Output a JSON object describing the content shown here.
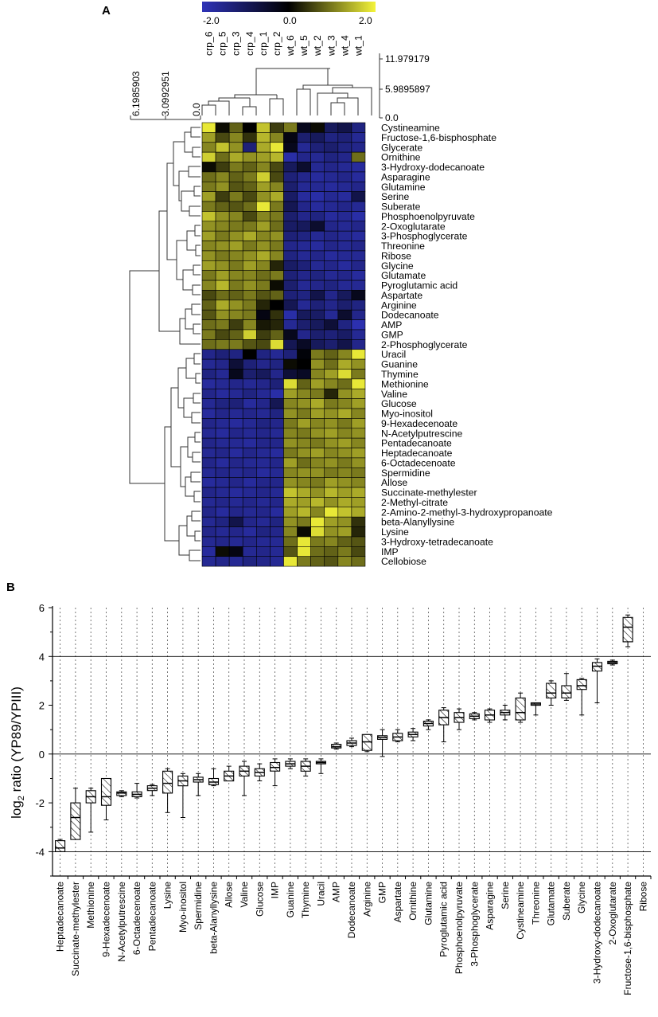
{
  "panels": {
    "a": "A",
    "b": "B"
  },
  "chart_data": [
    {
      "type": "heatmap",
      "panel": "A",
      "colorbar": {
        "ticks": [
          "-2.0",
          "0.0",
          "2.0"
        ],
        "min": -2.0,
        "max": 2.0,
        "low_color": "#2e33b8",
        "mid_color": "#000000",
        "high_color": "#f4f43a"
      },
      "columns": [
        "crp_6",
        "crp_5",
        "crp_3",
        "crp_4",
        "crp_1",
        "crp_2",
        "wt_6",
        "wt_5",
        "wt_2",
        "wt_3",
        "wt_4",
        "wt_1"
      ],
      "rows": [
        "Cystineamine",
        "Fructose-1,6-bisphosphate",
        "Glycerate",
        "Ornithine",
        "3-Hydroxy-dodecanoate",
        "Asparagine",
        "Glutamine",
        "Serine",
        "Suberate",
        "Phosphoenolpyruvate",
        "2-Oxoglutarate",
        "3-Phosphoglycerate",
        "Threonine",
        "Ribose",
        "Glycine",
        "Glutamate",
        "Pyroglutamic acid",
        "Aspartate",
        "Arginine",
        "Dodecanoate",
        "AMP",
        "GMP",
        "2-Phosphoglycerate",
        "Uracil",
        "Guanine",
        "Thymine",
        "Methionine",
        "Valine",
        "Glucose",
        "Myo-inositol",
        "9-Hexadecenoate",
        "N-Acetylputrescine",
        "Pentadecanoate",
        "Heptadecanoate",
        "6-Octadecenoate",
        "Spermidine",
        "Allose",
        "Succinate-methylester",
        "2-Methyl-citrate",
        "2-Amino-2-methyl-3-hydroxypropanoate",
        "beta-Alanyllysine",
        "Lysine",
        "3-Hydroxy-tetradecanoate",
        "IMP",
        "Cellobiose"
      ],
      "values": [
        [
          1.9,
          0.1,
          0.8,
          0.0,
          1.6,
          0.5,
          1.0,
          -0.3,
          0.1,
          -1.0,
          -0.8,
          -1.4
        ],
        [
          1.3,
          0.6,
          1.1,
          0.4,
          1.5,
          1.1,
          -0.2,
          -1.2,
          -1.0,
          -1.4,
          -1.3,
          -1.6
        ],
        [
          1.1,
          1.6,
          1.2,
          -1.3,
          1.4,
          1.9,
          -0.3,
          -1.6,
          -1.3,
          -1.2,
          -1.4,
          -1.5
        ],
        [
          1.7,
          0.9,
          1.4,
          1.2,
          1.3,
          1.5,
          -1.8,
          -1.5,
          -1.6,
          -1.4,
          -1.5,
          0.9
        ],
        [
          0.1,
          0.5,
          1.0,
          0.8,
          1.1,
          0.6,
          -1.0,
          -0.5,
          -1.6,
          -1.5,
          -1.6,
          -1.7
        ],
        [
          0.9,
          1.1,
          0.8,
          1.0,
          1.7,
          0.6,
          -1.3,
          -1.5,
          -1.7,
          -1.6,
          -1.5,
          -1.7
        ],
        [
          1.0,
          1.2,
          0.7,
          0.8,
          1.3,
          1.1,
          -1.2,
          -1.6,
          -1.6,
          -1.7,
          -1.6,
          -1.5
        ],
        [
          1.3,
          0.5,
          1.0,
          0.6,
          1.2,
          1.4,
          -1.1,
          -1.7,
          -1.8,
          -1.6,
          -1.7,
          -0.8
        ],
        [
          1.0,
          0.8,
          0.7,
          0.9,
          1.9,
          1.0,
          -0.9,
          -1.5,
          -1.7,
          -1.6,
          -1.5,
          -1.6
        ],
        [
          1.6,
          1.2,
          1.1,
          0.6,
          1.1,
          1.0,
          -1.2,
          -1.5,
          -1.4,
          -1.7,
          -1.6,
          -1.8
        ],
        [
          1.2,
          1.1,
          1.0,
          1.0,
          1.3,
          0.9,
          -1.1,
          -1.0,
          -0.5,
          -1.5,
          -1.6,
          -1.5
        ],
        [
          1.3,
          1.0,
          1.2,
          1.4,
          1.1,
          1.2,
          -1.3,
          -1.4,
          -1.6,
          -1.5,
          -1.6,
          -1.7
        ],
        [
          1.1,
          1.2,
          1.3,
          1.0,
          1.2,
          1.0,
          -1.5,
          -1.6,
          -1.7,
          -1.5,
          -1.6,
          -1.5
        ],
        [
          1.2,
          1.0,
          1.1,
          1.2,
          1.4,
          1.1,
          -1.4,
          -1.6,
          -1.5,
          -1.7,
          -1.6,
          -1.6
        ],
        [
          1.3,
          1.2,
          1.0,
          1.3,
          1.1,
          0.3,
          -1.1,
          -1.3,
          -1.6,
          -1.5,
          -1.7,
          -1.5
        ],
        [
          1.0,
          1.3,
          1.1,
          1.1,
          0.9,
          1.0,
          -1.3,
          -1.5,
          -1.4,
          -1.6,
          -1.5,
          -1.7
        ],
        [
          1.1,
          1.5,
          1.0,
          1.2,
          1.0,
          0.1,
          -1.2,
          -1.6,
          -1.5,
          -1.4,
          -1.6,
          -1.6
        ],
        [
          0.6,
          0.9,
          0.8,
          1.0,
          0.7,
          0.8,
          -1.3,
          -1.4,
          -0.8,
          -1.5,
          -1.0,
          -0.3
        ],
        [
          0.8,
          1.4,
          1.2,
          1.0,
          0.3,
          0.0,
          -0.9,
          -1.6,
          -1.3,
          -1.5,
          -1.2,
          -1.4
        ],
        [
          0.7,
          1.2,
          1.1,
          1.0,
          -0.2,
          0.4,
          -1.8,
          -1.0,
          -1.1,
          -1.6,
          -0.5,
          -1.5
        ],
        [
          0.9,
          1.0,
          0.5,
          1.1,
          0.2,
          0.3,
          -1.6,
          -1.2,
          -1.0,
          -0.6,
          -1.4,
          -1.9
        ],
        [
          1.0,
          0.6,
          0.8,
          1.7,
          0.5,
          0.8,
          -0.3,
          -1.5,
          -1.2,
          -1.3,
          -1.1,
          -1.6
        ],
        [
          0.9,
          1.0,
          1.0,
          0.7,
          0.6,
          1.8,
          -0.9,
          -0.4,
          -1.0,
          -1.2,
          -0.8,
          -1.5
        ],
        [
          -1.5,
          -1.3,
          -1.4,
          0.0,
          -1.4,
          -1.6,
          -1.3,
          -0.1,
          1.0,
          0.8,
          1.1,
          1.9
        ],
        [
          -1.6,
          -1.5,
          -0.6,
          -1.3,
          -1.5,
          -1.4,
          0.1,
          0.0,
          1.2,
          0.9,
          1.4,
          1.2
        ],
        [
          -1.4,
          -1.6,
          -0.3,
          -1.2,
          -1.0,
          -1.5,
          -0.6,
          -0.4,
          1.1,
          1.3,
          1.8,
          1.0
        ],
        [
          -1.7,
          -1.6,
          -1.5,
          -1.6,
          -1.5,
          -1.3,
          1.8,
          0.8,
          1.3,
          1.1,
          0.9,
          1.9
        ],
        [
          -1.5,
          -1.7,
          -1.6,
          -1.4,
          -1.6,
          -1.8,
          1.3,
          1.1,
          1.0,
          0.3,
          1.2,
          1.4
        ],
        [
          -1.6,
          -1.4,
          -1.3,
          -1.7,
          -1.5,
          -0.9,
          1.1,
          1.2,
          1.4,
          1.0,
          1.1,
          1.3
        ],
        [
          -1.7,
          -1.5,
          -1.6,
          -1.5,
          -1.6,
          -1.4,
          1.2,
          1.0,
          1.3,
          1.2,
          1.4,
          1.1
        ],
        [
          -1.5,
          -1.6,
          -1.7,
          -1.6,
          -1.4,
          -1.5,
          1.0,
          1.3,
          1.1,
          1.2,
          1.0,
          1.3
        ],
        [
          -1.6,
          -1.7,
          -1.5,
          -1.6,
          -1.5,
          -1.6,
          1.1,
          1.0,
          1.2,
          1.3,
          1.1,
          1.2
        ],
        [
          -1.5,
          -1.6,
          -1.6,
          -1.7,
          -1.5,
          -1.5,
          1.2,
          1.1,
          1.0,
          1.2,
          1.3,
          1.1
        ],
        [
          -1.6,
          -1.5,
          -1.7,
          -1.5,
          -1.6,
          -1.7,
          1.0,
          1.2,
          1.3,
          1.1,
          1.2,
          1.3
        ],
        [
          -1.5,
          -1.7,
          -1.5,
          -1.6,
          -1.6,
          -1.5,
          1.3,
          0.9,
          1.1,
          1.2,
          1.0,
          1.2
        ],
        [
          -1.6,
          -1.5,
          -1.6,
          -1.5,
          -1.7,
          -1.6,
          1.1,
          1.2,
          1.2,
          1.0,
          1.1,
          1.0
        ],
        [
          -1.7,
          -1.6,
          -1.5,
          -1.7,
          -1.5,
          -1.5,
          1.2,
          1.1,
          1.0,
          1.3,
          1.2,
          1.1
        ],
        [
          -1.5,
          -1.6,
          -1.7,
          -1.6,
          -1.5,
          -1.6,
          1.6,
          1.4,
          1.2,
          1.5,
          1.3,
          1.4
        ],
        [
          -1.6,
          -1.5,
          -1.6,
          -1.5,
          -1.6,
          -1.5,
          1.4,
          1.3,
          1.5,
          1.2,
          1.4,
          1.3
        ],
        [
          -1.5,
          -1.7,
          -1.5,
          -1.6,
          -1.5,
          -1.7,
          1.3,
          1.5,
          1.1,
          1.9,
          1.6,
          1.4
        ],
        [
          -1.6,
          -1.4,
          -0.8,
          -1.5,
          -1.6,
          -1.4,
          1.2,
          1.0,
          1.9,
          1.3,
          1.2,
          0.4
        ],
        [
          -1.5,
          -1.6,
          -1.5,
          -1.7,
          -1.4,
          -1.5,
          1.1,
          0.1,
          1.8,
          1.2,
          1.3,
          0.3
        ],
        [
          -1.6,
          -1.5,
          -1.6,
          -1.5,
          -1.6,
          -1.6,
          0.9,
          1.9,
          1.0,
          1.1,
          0.8,
          0.7
        ],
        [
          -1.7,
          0.1,
          -0.2,
          -1.6,
          -1.5,
          -1.6,
          0.7,
          1.9,
          0.9,
          0.8,
          1.0,
          0.6
        ],
        [
          -1.6,
          -1.5,
          -1.6,
          -1.4,
          -1.5,
          -1.6,
          1.9,
          1.0,
          0.8,
          0.7,
          1.1,
          0.9
        ]
      ],
      "column_dendrogram_scale": [
        "11.979179",
        "5.9895897",
        "0.0"
      ],
      "row_dendrogram_scale": [
        "6.1985903",
        "3.0992951",
        "0.0"
      ]
    },
    {
      "type": "box",
      "panel": "B",
      "ylabel": "log2 ratio (YP89/YPIII)",
      "ylabel_parts": {
        "base": "log",
        "sub": "2",
        "rest": " ratio (YP89/YPIII)"
      },
      "ylim": [
        -5.0,
        6.0
      ],
      "yticks": [
        -4,
        -2,
        0,
        2,
        4,
        6
      ],
      "reference_lines": [
        -4,
        0,
        4
      ],
      "categories": [
        "Heptadecanoate",
        "Succinate-methylester",
        "Methionine",
        "9-Hexadecenoate",
        "N-Acetylputrescine",
        "6-Octadecenoate",
        "Pentadecanoate",
        "Lysine",
        "Myo-inositol",
        "Spermidine",
        "beta-Alanyllysine",
        "Allose",
        "Valine",
        "Glucose",
        "IMP",
        "Guanine",
        "Thymine",
        "Uracil",
        "AMP",
        "Dodecanoate",
        "Arginine",
        "GMP",
        "Aspartate",
        "Ornithine",
        "Glutamine",
        "Pyroglutamic acid",
        "Phosphoenolpyruvate",
        "3-Phosphoglycerate",
        "Asparagine",
        "Serine",
        "Cystineamine",
        "Threonine",
        "Glutamate",
        "Suberate",
        "Glycine",
        "3-Hydroxy-dodecanoate",
        "2-Oxoglutarate",
        "Fructose-1,6-bisphosphate",
        "Ribose"
      ],
      "boxes": [
        {
          "min": -4.0,
          "q1": -4.0,
          "median": -3.85,
          "q3": -3.55,
          "max": -3.5
        },
        {
          "min": -3.5,
          "q1": -3.5,
          "median": -2.6,
          "q3": -2.0,
          "max": -1.4
        },
        {
          "min": -3.2,
          "q1": -2.0,
          "median": -1.75,
          "q3": -1.5,
          "max": -1.4
        },
        {
          "min": -2.7,
          "q1": -2.1,
          "median": -1.75,
          "q3": -1.0,
          "max": -1.0
        },
        {
          "min": -1.75,
          "q1": -1.7,
          "median": -1.6,
          "q3": -1.55,
          "max": -1.5
        },
        {
          "min": -1.8,
          "q1": -1.75,
          "median": -1.65,
          "q3": -1.55,
          "max": -1.2
        },
        {
          "min": -1.7,
          "q1": -1.5,
          "median": -1.4,
          "q3": -1.3,
          "max": -1.25
        },
        {
          "min": -2.4,
          "q1": -1.6,
          "median": -1.2,
          "q3": -0.7,
          "max": -0.6
        },
        {
          "min": -2.6,
          "q1": -1.3,
          "median": -1.1,
          "q3": -0.9,
          "max": -0.8
        },
        {
          "min": -1.7,
          "q1": -1.15,
          "median": -1.05,
          "q3": -0.95,
          "max": -0.8
        },
        {
          "min": -1.3,
          "q1": -1.25,
          "median": -1.15,
          "q3": -1.0,
          "max": -0.6
        },
        {
          "min": -1.1,
          "q1": -1.1,
          "median": -0.9,
          "q3": -0.7,
          "max": -0.5
        },
        {
          "min": -1.7,
          "q1": -0.9,
          "median": -0.7,
          "q3": -0.5,
          "max": -0.3
        },
        {
          "min": -1.1,
          "q1": -0.9,
          "median": -0.75,
          "q3": -0.6,
          "max": -0.4
        },
        {
          "min": -1.3,
          "q1": -0.7,
          "median": -0.55,
          "q3": -0.35,
          "max": -0.2
        },
        {
          "min": -0.6,
          "q1": -0.5,
          "median": -0.4,
          "q3": -0.3,
          "max": -0.2
        },
        {
          "min": -0.9,
          "q1": -0.7,
          "median": -0.5,
          "q3": -0.3,
          "max": -0.2
        },
        {
          "min": -0.8,
          "q1": -0.4,
          "median": -0.35,
          "q3": -0.3,
          "max": -0.2
        },
        {
          "min": 0.2,
          "q1": 0.25,
          "median": 0.3,
          "q3": 0.4,
          "max": 0.45
        },
        {
          "min": 0.3,
          "q1": 0.35,
          "median": 0.45,
          "q3": 0.55,
          "max": 0.65
        },
        {
          "min": 0.1,
          "q1": 0.15,
          "median": 0.5,
          "q3": 0.8,
          "max": 0.8
        },
        {
          "min": -0.1,
          "q1": 0.6,
          "median": 0.68,
          "q3": 0.75,
          "max": 1.0
        },
        {
          "min": 0.5,
          "q1": 0.55,
          "median": 0.7,
          "q3": 0.85,
          "max": 1.0
        },
        {
          "min": 0.55,
          "q1": 0.7,
          "median": 0.8,
          "q3": 0.9,
          "max": 1.05
        },
        {
          "min": 1.0,
          "q1": 1.15,
          "median": 1.25,
          "q3": 1.35,
          "max": 1.4
        },
        {
          "min": 0.5,
          "q1": 1.2,
          "median": 1.5,
          "q3": 1.8,
          "max": 1.9
        },
        {
          "min": 1.0,
          "q1": 1.3,
          "median": 1.5,
          "q3": 1.7,
          "max": 1.85
        },
        {
          "min": 1.4,
          "q1": 1.45,
          "median": 1.55,
          "q3": 1.65,
          "max": 1.7
        },
        {
          "min": 1.3,
          "q1": 1.4,
          "median": 1.6,
          "q3": 1.8,
          "max": 1.85
        },
        {
          "min": 1.4,
          "q1": 1.6,
          "median": 1.7,
          "q3": 1.8,
          "max": 2.0
        },
        {
          "min": 1.3,
          "q1": 1.4,
          "median": 1.7,
          "q3": 2.3,
          "max": 2.5
        },
        {
          "min": 1.6,
          "q1": 2.0,
          "median": 2.05,
          "q3": 2.1,
          "max": 2.1
        },
        {
          "min": 2.0,
          "q1": 2.3,
          "median": 2.5,
          "q3": 2.9,
          "max": 3.0
        },
        {
          "min": 2.2,
          "q1": 2.3,
          "median": 2.5,
          "q3": 2.8,
          "max": 3.3
        },
        {
          "min": 1.6,
          "q1": 2.65,
          "median": 2.8,
          "q3": 3.05,
          "max": 3.1
        },
        {
          "min": 2.1,
          "q1": 3.4,
          "median": 3.6,
          "q3": 3.75,
          "max": 3.9
        },
        {
          "min": 3.65,
          "q1": 3.7,
          "median": 3.75,
          "q3": 3.8,
          "max": 3.85
        },
        {
          "min": 4.4,
          "q1": 4.6,
          "median": 5.2,
          "q3": 5.6,
          "max": 5.7
        },
        null
      ]
    }
  ]
}
